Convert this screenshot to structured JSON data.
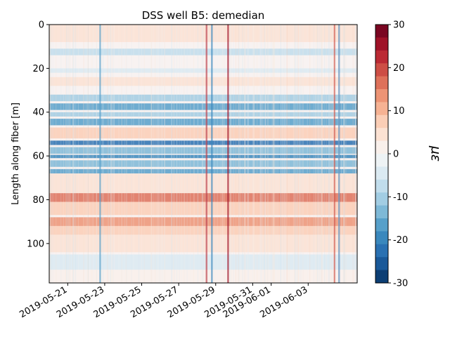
{
  "chart_data": {
    "type": "heatmap",
    "title": "DSS well B5: demedian",
    "xlabel": "",
    "ylabel": "Length along fiber [m]",
    "colorbar_label": "με",
    "colormap": "RdBu_r",
    "clim": [
      -30,
      30
    ],
    "color_levels": 20,
    "colorbar_ticks": [
      30,
      20,
      10,
      0,
      -10,
      -20,
      -30
    ],
    "x_range": [
      "2019-05-20",
      "2019-06-05"
    ],
    "x_ticks": [
      "2019-05-21",
      "2019-05-23",
      "2019-05-25",
      "2019-05-27",
      "2019-05-29",
      "2019-05-31",
      "2019-06-01",
      "2019-06-03"
    ],
    "ylim": [
      118,
      0
    ],
    "y_ticks": [
      0,
      20,
      40,
      60,
      80,
      100
    ],
    "depth_bands": [
      {
        "from": 0,
        "to": 8,
        "strain": 3
      },
      {
        "from": 11,
        "to": 14,
        "strain": -8
      },
      {
        "from": 20,
        "to": 22,
        "strain": -4
      },
      {
        "from": 24,
        "to": 28,
        "strain": 5
      },
      {
        "from": 32,
        "to": 35,
        "strain": -12
      },
      {
        "from": 36,
        "to": 39,
        "strain": -18
      },
      {
        "from": 40,
        "to": 42,
        "strain": -12
      },
      {
        "from": 43,
        "to": 46,
        "strain": -16
      },
      {
        "from": 47,
        "to": 52,
        "strain": 8
      },
      {
        "from": 53,
        "to": 55,
        "strain": -24
      },
      {
        "from": 56,
        "to": 59,
        "strain": -14
      },
      {
        "from": 59.5,
        "to": 61,
        "strain": -20
      },
      {
        "from": 62,
        "to": 65,
        "strain": -14
      },
      {
        "from": 66,
        "to": 68,
        "strain": -16
      },
      {
        "from": 68,
        "to": 77,
        "strain": 3
      },
      {
        "from": 77,
        "to": 81,
        "strain": 16
      },
      {
        "from": 81,
        "to": 87,
        "strain": 7
      },
      {
        "from": 88,
        "to": 92,
        "strain": 12
      },
      {
        "from": 92,
        "to": 96,
        "strain": 8
      },
      {
        "from": 96,
        "to": 104,
        "strain": 4
      },
      {
        "from": 105,
        "to": 112,
        "strain": -4
      },
      {
        "from": 112,
        "to": 118,
        "strain": 2
      }
    ],
    "time_events": [
      {
        "date": "2019-05-22T18:00",
        "strain": -18
      },
      {
        "date": "2019-05-28T12:00",
        "strain": 22
      },
      {
        "date": "2019-05-28T19:00",
        "strain": -20
      },
      {
        "date": "2019-05-29T16:00",
        "strain": 24
      },
      {
        "date": "2019-06-04T10:00",
        "strain": 20
      },
      {
        "date": "2019-06-04T16:00",
        "strain": -22
      }
    ]
  }
}
